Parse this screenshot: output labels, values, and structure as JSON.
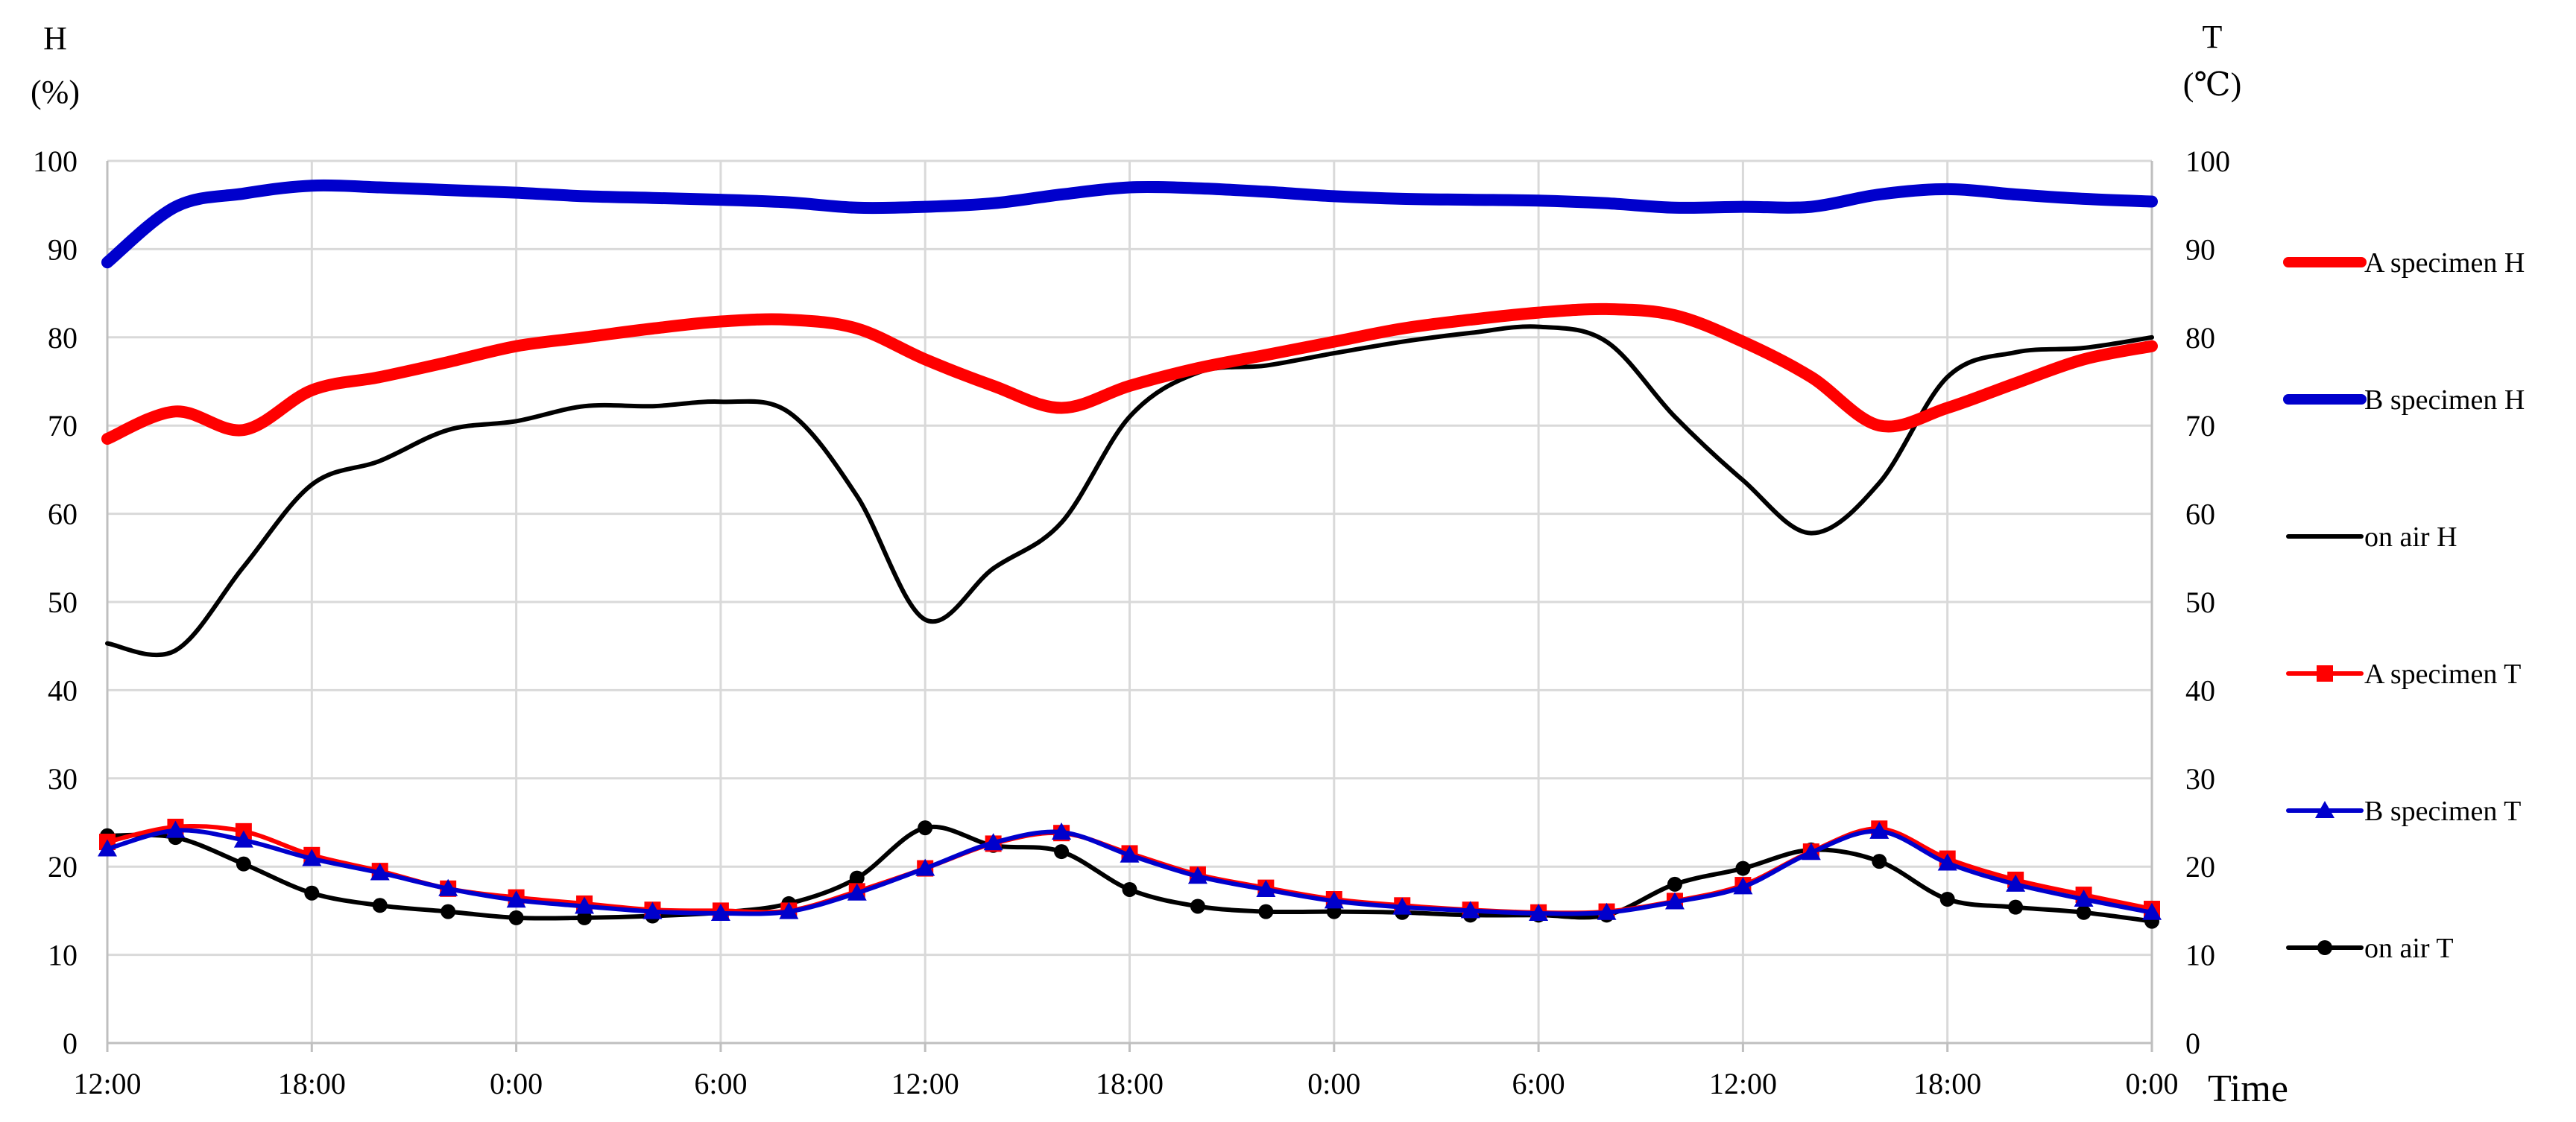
{
  "chart_data": {
    "type": "line",
    "left_axis": {
      "label": "H",
      "unit": "(%)",
      "ylim": [
        0,
        100
      ],
      "ticks": [
        0,
        10,
        20,
        30,
        40,
        50,
        60,
        70,
        80,
        90,
        100
      ]
    },
    "right_axis": {
      "label": "T",
      "unit": "(℃)",
      "ylim": [
        0,
        100
      ],
      "ticks": [
        0,
        10,
        20,
        30,
        40,
        50,
        60,
        70,
        80,
        90,
        100
      ]
    },
    "xlabel": "Time",
    "x_tick_labels": [
      "12:00",
      "18:00",
      "0:00",
      "6:00",
      "12:00",
      "18:00",
      "0:00",
      "6:00",
      "12:00",
      "18:00",
      "0:00"
    ],
    "x": [
      "12:00",
      "14:00",
      "16:00",
      "18:00",
      "20:00",
      "22:00",
      "0:00",
      "2:00",
      "4:00",
      "6:00",
      "8:00",
      "10:00",
      "12:00",
      "14:00",
      "16:00",
      "18:00",
      "20:00",
      "22:00",
      "0:00",
      "2:00",
      "4:00",
      "6:00",
      "8:00",
      "10:00",
      "12:00",
      "14:00",
      "16:00",
      "18:00",
      "20:00",
      "22:00",
      "0:00"
    ],
    "grid": true,
    "legend_position": "right",
    "series": [
      {
        "name": "A specimen H",
        "axis": "left",
        "color": "#ff0000",
        "marker": "none",
        "style": "thick",
        "values": [
          68.5,
          71.6,
          69.5,
          74,
          75.5,
          77.2,
          79,
          80,
          81,
          81.8,
          82,
          81,
          77.5,
          74.5,
          72,
          74.5,
          76.5,
          78,
          79.5,
          81,
          82,
          82.8,
          83.2,
          82.5,
          79.5,
          75.5,
          70,
          72,
          74.8,
          77.5,
          79
        ]
      },
      {
        "name": "B specimen H",
        "axis": "left",
        "color": "#0000cc",
        "marker": "none",
        "style": "thick",
        "values": [
          88.5,
          94.8,
          96.3,
          97.2,
          97,
          96.7,
          96.4,
          96,
          95.8,
          95.6,
          95.3,
          94.7,
          94.8,
          95.2,
          96.2,
          97,
          96.9,
          96.5,
          96,
          95.7,
          95.6,
          95.5,
          95.2,
          94.7,
          94.8,
          94.8,
          96.2,
          96.8,
          96.2,
          95.7,
          95.4
        ]
      },
      {
        "name": "on air H",
        "axis": "left",
        "color": "#000000",
        "marker": "none",
        "style": "thin",
        "values": [
          45.3,
          44.5,
          54,
          63.3,
          66,
          69.5,
          70.5,
          72.2,
          72.2,
          72.7,
          71.5,
          62,
          48,
          53.8,
          59,
          71,
          76,
          76.8,
          78.2,
          79.5,
          80.5,
          81.2,
          79.5,
          71,
          63.8,
          57.8,
          63.5,
          75.5,
          78.3,
          78.8,
          80
        ]
      },
      {
        "name": "A specimen T",
        "axis": "right",
        "color": "#ff0000",
        "marker": "square",
        "style": "marker",
        "values": [
          22.8,
          24.5,
          24,
          21.3,
          19.5,
          17.5,
          16.5,
          15.8,
          15.1,
          15,
          15,
          17.2,
          19.8,
          22.6,
          23.8,
          21.5,
          19.1,
          17.6,
          16.3,
          15.6,
          15.1,
          14.8,
          14.9,
          16.1,
          17.9,
          21.7,
          24.3,
          20.9,
          18.5,
          16.8,
          15.2
        ]
      },
      {
        "name": "B specimen T",
        "axis": "right",
        "color": "#0000cc",
        "marker": "triangle",
        "style": "marker",
        "values": [
          22,
          24.1,
          23,
          20.9,
          19.3,
          17.5,
          16.2,
          15.5,
          14.9,
          14.7,
          14.9,
          17,
          19.8,
          22.7,
          23.9,
          21.3,
          18.9,
          17.4,
          16.1,
          15.4,
          15,
          14.7,
          14.8,
          16,
          17.7,
          21.6,
          24,
          20.4,
          18,
          16.3,
          14.8
        ]
      },
      {
        "name": "on air T",
        "axis": "right",
        "color": "#000000",
        "marker": "circle",
        "style": "marker",
        "values": [
          23.5,
          23.3,
          20.3,
          17,
          15.6,
          14.9,
          14.2,
          14.2,
          14.4,
          14.8,
          15.8,
          18.7,
          24.4,
          22.4,
          21.7,
          17.4,
          15.5,
          14.9,
          14.9,
          14.8,
          14.5,
          14.5,
          14.5,
          18,
          19.8,
          21.9,
          20.6,
          16.3,
          15.4,
          14.8,
          13.8
        ]
      }
    ]
  }
}
